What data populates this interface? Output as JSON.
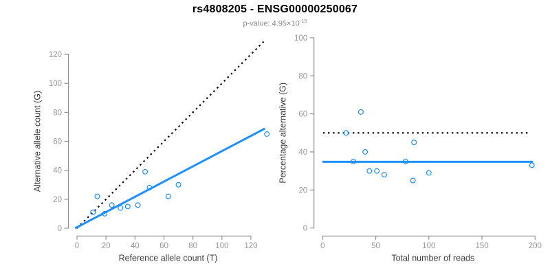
{
  "figure": {
    "title": "rs4808205 - ENSG00000250067",
    "p_value_prefix": "p-value: 4.95×10",
    "p_value_exponent": "-19",
    "colors": {
      "accent_blue": "#1e90ff",
      "line_black": "#000000",
      "axis_gray": "#8f8f8f",
      "tick_text_gray": "#979797",
      "axis_title_dark": "#3d3d3d",
      "subtitle_gray": "#8c8c8c",
      "background": "#ffffff"
    }
  },
  "chart_data": [
    {
      "type": "scatter",
      "name": "allele-counts-plot",
      "xlabel": "Reference allele count (T)",
      "ylabel": "Alternative allele count (G)",
      "xlim": [
        0,
        131
      ],
      "ylim": [
        0,
        131
      ],
      "xticks": [
        0,
        20,
        40,
        60,
        80,
        100,
        120
      ],
      "yticks": [
        0,
        20,
        40,
        60,
        80,
        100,
        120
      ],
      "grid": false,
      "points": [
        [
          11,
          11
        ],
        [
          14,
          22
        ],
        [
          19,
          10
        ],
        [
          24,
          16
        ],
        [
          30,
          14
        ],
        [
          35,
          15
        ],
        [
          42,
          16
        ],
        [
          47,
          39
        ],
        [
          50,
          28
        ],
        [
          63,
          22
        ],
        [
          70,
          30
        ],
        [
          131,
          65
        ]
      ],
      "lines": [
        {
          "name": "identity-line",
          "style": "dotted",
          "color_key": "line_black",
          "from": [
            0,
            0
          ],
          "to": [
            130.4,
            130.4
          ]
        },
        {
          "name": "fit-line",
          "style": "solid",
          "color_key": "accent_blue",
          "from": [
            -1.3,
            0
          ],
          "to": [
            129.6,
            68.8
          ]
        }
      ]
    },
    {
      "type": "scatter",
      "name": "percentage-vs-reads-plot",
      "xlabel": "Total number of reads",
      "ylabel": "Percentage alternative (G)",
      "xlim": [
        0,
        200
      ],
      "ylim": [
        0,
        100
      ],
      "xticks": [
        0,
        50,
        100,
        150,
        200
      ],
      "yticks": [
        0,
        20,
        40,
        60,
        80,
        100
      ],
      "grid": false,
      "points": [
        [
          22,
          50
        ],
        [
          29,
          35
        ],
        [
          36,
          61
        ],
        [
          40,
          40
        ],
        [
          44,
          30
        ],
        [
          51,
          30
        ],
        [
          58,
          28
        ],
        [
          78,
          35
        ],
        [
          85,
          25
        ],
        [
          86,
          45
        ],
        [
          100,
          29
        ],
        [
          197,
          33
        ]
      ],
      "lines": [
        {
          "name": "fifty-percent-line",
          "style": "dotted",
          "color_key": "line_black",
          "from": [
            0.3,
            50
          ],
          "to": [
            194.3,
            50
          ]
        },
        {
          "name": "mean-percentage-line",
          "style": "solid",
          "color_key": "accent_blue",
          "from": [
            -0.3,
            34.8
          ],
          "to": [
            198,
            34.8
          ]
        }
      ]
    }
  ]
}
